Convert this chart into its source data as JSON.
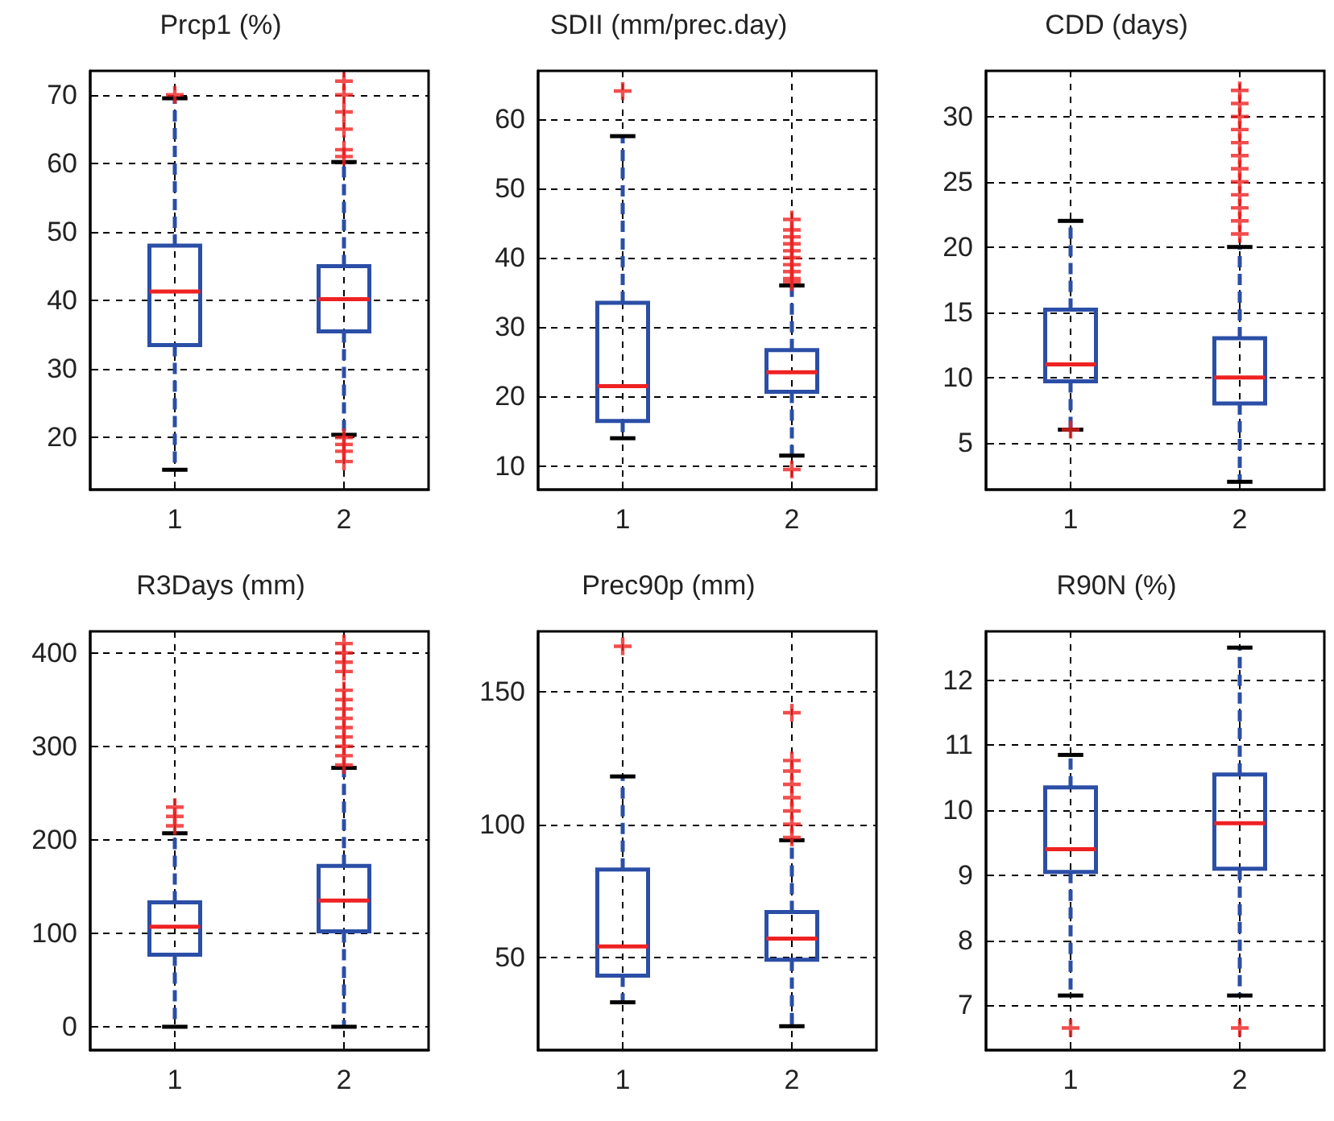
{
  "chart_data": [
    {
      "type": "box",
      "title": "Prcp1 (%)",
      "categories": [
        "1",
        "2"
      ],
      "ylim": [
        12.4,
        73.5
      ],
      "yticks": [
        20,
        30,
        40,
        50,
        60,
        70
      ],
      "grid": true,
      "series": [
        {
          "color": "#2b4ea6",
          "boxes": [
            {
              "low": 15.3,
              "q1": 33.5,
              "median": 41.3,
              "q3": 48,
              "high": 69.5,
              "outliers": [
                70
              ]
            },
            {
              "low": 20.4,
              "q1": 35.5,
              "median": 40.2,
              "q3": 45,
              "high": 60.2,
              "outliers": [
                61,
                62,
                65,
                67.5,
                70,
                72,
                20,
                19,
                18,
                16.5
              ]
            }
          ]
        }
      ]
    },
    {
      "type": "box",
      "title": "SDII (mm/prec.day)",
      "categories": [
        "1",
        "2"
      ],
      "ylim": [
        6.6,
        66.9
      ],
      "yticks": [
        10,
        20,
        30,
        40,
        50,
        60
      ],
      "grid": true,
      "series": [
        {
          "color": "#2b4ea6",
          "boxes": [
            {
              "low": 14,
              "q1": 16.5,
              "median": 21.5,
              "q3": 33.5,
              "high": 57.5,
              "outliers": [
                64
              ]
            },
            {
              "low": 11.5,
              "q1": 20.7,
              "median": 23.5,
              "q3": 26.7,
              "high": 36,
              "outliers": [
                36.5,
                37,
                38,
                39,
                40,
                41,
                42,
                43,
                44,
                45.5,
                9.5
              ]
            }
          ]
        }
      ]
    },
    {
      "type": "box",
      "title": "CDD (days)",
      "categories": [
        "1",
        "2"
      ],
      "ylim": [
        1.4,
        33.5
      ],
      "yticks": [
        5,
        10,
        15,
        20,
        25,
        30
      ],
      "grid": true,
      "series": [
        {
          "color": "#2b4ea6",
          "boxes": [
            {
              "low": 6,
              "q1": 9.7,
              "median": 11,
              "q3": 15.2,
              "high": 22,
              "outliers": [
                6
              ]
            },
            {
              "low": 2,
              "q1": 8,
              "median": 10,
              "q3": 13,
              "high": 20,
              "outliers": [
                21,
                22,
                23,
                24,
                25,
                26,
                27,
                28,
                29,
                30,
                31,
                32
              ]
            }
          ]
        }
      ]
    },
    {
      "type": "box",
      "title": "R3Days (mm)",
      "categories": [
        "1",
        "2"
      ],
      "ylim": [
        -25,
        423
      ],
      "yticks": [
        0,
        100,
        200,
        300,
        400
      ],
      "grid": true,
      "series": [
        {
          "color": "#2b4ea6",
          "boxes": [
            {
              "low": 0,
              "q1": 77,
              "median": 107,
              "q3": 133,
              "high": 207,
              "outliers": [
                215,
                225,
                235
              ]
            },
            {
              "low": 0,
              "q1": 102,
              "median": 135,
              "q3": 172,
              "high": 277,
              "outliers": [
                280,
                290,
                300,
                310,
                320,
                330,
                340,
                350,
                360,
                380,
                390,
                400,
                410
              ]
            }
          ]
        }
      ]
    },
    {
      "type": "box",
      "title": "Prec90p (mm)",
      "categories": [
        "1",
        "2"
      ],
      "ylim": [
        15,
        172.6
      ],
      "yticks": [
        50,
        100,
        150
      ],
      "grid": true,
      "series": [
        {
          "color": "#2b4ea6",
          "boxes": [
            {
              "low": 33,
              "q1": 43,
              "median": 54,
              "q3": 83,
              "high": 118,
              "outliers": [
                167
              ]
            },
            {
              "low": 24,
              "q1": 49,
              "median": 57,
              "q3": 67,
              "high": 94,
              "outliers": [
                95,
                100,
                105,
                110,
                115,
                120,
                124,
                142
              ]
            }
          ]
        }
      ]
    },
    {
      "type": "box",
      "title": "R90N (%)",
      "categories": [
        "1",
        "2"
      ],
      "ylim": [
        6.31,
        12.75
      ],
      "yticks": [
        7,
        8,
        9,
        10,
        11,
        12
      ],
      "grid": true,
      "series": [
        {
          "color": "#2b4ea6",
          "boxes": [
            {
              "low": 7.15,
              "q1": 9.05,
              "median": 9.4,
              "q3": 10.35,
              "high": 10.85,
              "outliers": [
                6.65
              ]
            },
            {
              "low": 7.15,
              "q1": 9.1,
              "median": 9.8,
              "q3": 10.55,
              "high": 12.5,
              "outliers": [
                6.65
              ]
            }
          ]
        }
      ]
    }
  ]
}
